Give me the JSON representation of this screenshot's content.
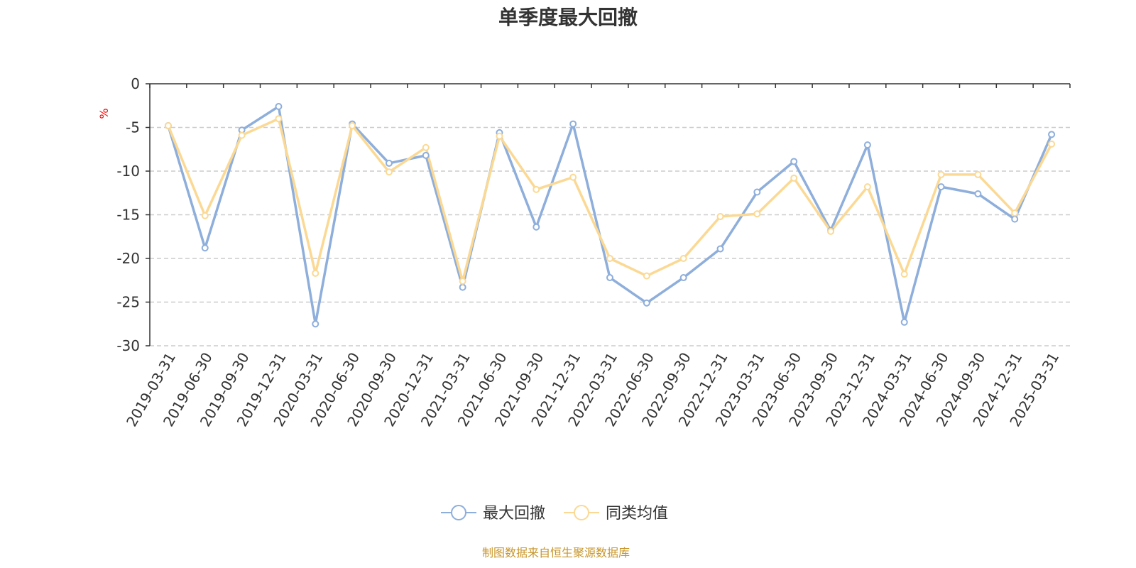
{
  "chart_data": {
    "type": "line",
    "title": "单季度最大回撤",
    "ylabel": "%",
    "ylim": [
      -30,
      0
    ],
    "yticks": [
      0,
      -5,
      -10,
      -15,
      -20,
      -25,
      -30
    ],
    "grid": true,
    "legend_position": "bottom",
    "categories": [
      "2019-03-31",
      "2019-06-30",
      "2019-09-30",
      "2019-12-31",
      "2020-03-31",
      "2020-06-30",
      "2020-09-30",
      "2020-12-31",
      "2021-03-31",
      "2021-06-30",
      "2021-09-30",
      "2021-12-31",
      "2022-03-31",
      "2022-06-30",
      "2022-09-30",
      "2022-12-31",
      "2023-03-31",
      "2023-06-30",
      "2023-09-30",
      "2023-12-31",
      "2024-03-31",
      "2024-06-30",
      "2024-09-30",
      "2024-12-31",
      "2025-03-31"
    ],
    "series": [
      {
        "name": "最大回撤",
        "color": "#8eaedb",
        "values": [
          -4.8,
          -18.8,
          -5.3,
          -2.6,
          -27.5,
          -4.6,
          -9.1,
          -8.2,
          -23.3,
          -5.6,
          -16.4,
          -4.6,
          -22.2,
          -25.1,
          -22.2,
          -18.9,
          -12.4,
          -8.9,
          -16.8,
          -7.0,
          -27.3,
          -11.8,
          -12.6,
          -15.5,
          -5.8
        ]
      },
      {
        "name": "同类均值",
        "color": "#fbd994",
        "values": [
          -4.8,
          -15.1,
          -5.9,
          -4.0,
          -21.7,
          -4.8,
          -10.1,
          -7.3,
          -22.6,
          -6.0,
          -12.1,
          -10.7,
          -20.0,
          -22.0,
          -20.0,
          -15.2,
          -14.9,
          -10.8,
          -16.9,
          -11.8,
          -21.8,
          -10.4,
          -10.4,
          -14.8,
          -6.9
        ]
      }
    ]
  },
  "source_note": "制图数据来自恒生聚源数据库"
}
